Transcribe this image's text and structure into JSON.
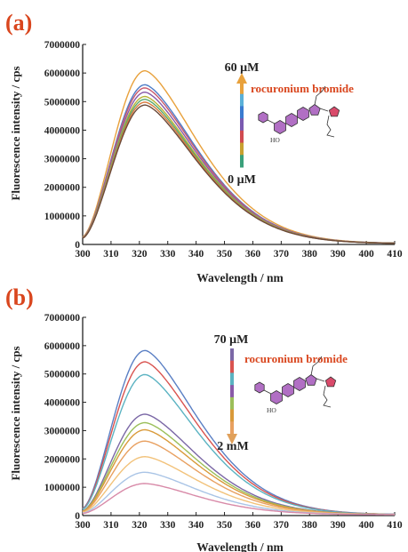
{
  "chart_data": [
    {
      "panel": "(a)",
      "type": "line",
      "xlabel": "Wavelength / nm",
      "ylabel": "Fluorescence intensity / cps",
      "xlim": [
        300,
        410
      ],
      "ylim": [
        0,
        7000000
      ],
      "xticks": [
        "300",
        "310",
        "320",
        "330",
        "340",
        "350",
        "360",
        "370",
        "380",
        "390",
        "400",
        "410"
      ],
      "yticks": [
        "0",
        "1000000",
        "2000000",
        "3000000",
        "4000000",
        "5000000",
        "6000000",
        "7000000"
      ],
      "annotation_top": "60 μM",
      "annotation_bottom": "0 μM",
      "compound_label": "rocuronium bromide",
      "arrow_direction": "up",
      "peaks": [
        6050000,
        5560000,
        5450000,
        5300000,
        5150000,
        5050000,
        4950000,
        4850000
      ],
      "colors": [
        "#e8a13c",
        "#4d7cc7",
        "#c85a6e",
        "#8a5aa8",
        "#b8b335",
        "#5aa86e",
        "#d97a3c",
        "#6b4a3a"
      ]
    },
    {
      "panel": "(b)",
      "type": "line",
      "xlabel": "Wavelength / nm",
      "ylabel": "Fluorescence intensity / cps",
      "xlim": [
        300,
        410
      ],
      "ylim": [
        0,
        7000000
      ],
      "xticks": [
        "300",
        "310",
        "320",
        "330",
        "340",
        "350",
        "360",
        "370",
        "380",
        "390",
        "400",
        "410"
      ],
      "yticks": [
        "0",
        "1000000",
        "2000000",
        "3000000",
        "4000000",
        "5000000",
        "6000000",
        "7000000"
      ],
      "annotation_top": "70 μM",
      "annotation_bottom": "2 mM",
      "compound_label": "rocuronium bromide",
      "arrow_direction": "down",
      "peaks": [
        5800000,
        5400000,
        4950000,
        3550000,
        3250000,
        3000000,
        2600000,
        2050000,
        1500000,
        1100000
      ],
      "colors": [
        "#5a7fc4",
        "#d9534f",
        "#5bb3c2",
        "#7b68a6",
        "#9bbf5a",
        "#d99a3a",
        "#e8a060",
        "#f2c27a",
        "#a9c4e6",
        "#d88aa8"
      ]
    }
  ],
  "colors": {
    "panel_label": "#d9461e",
    "compound": "#d9461e",
    "ring_fill": "#b16fc4",
    "ring_red": "#d94a6a"
  }
}
